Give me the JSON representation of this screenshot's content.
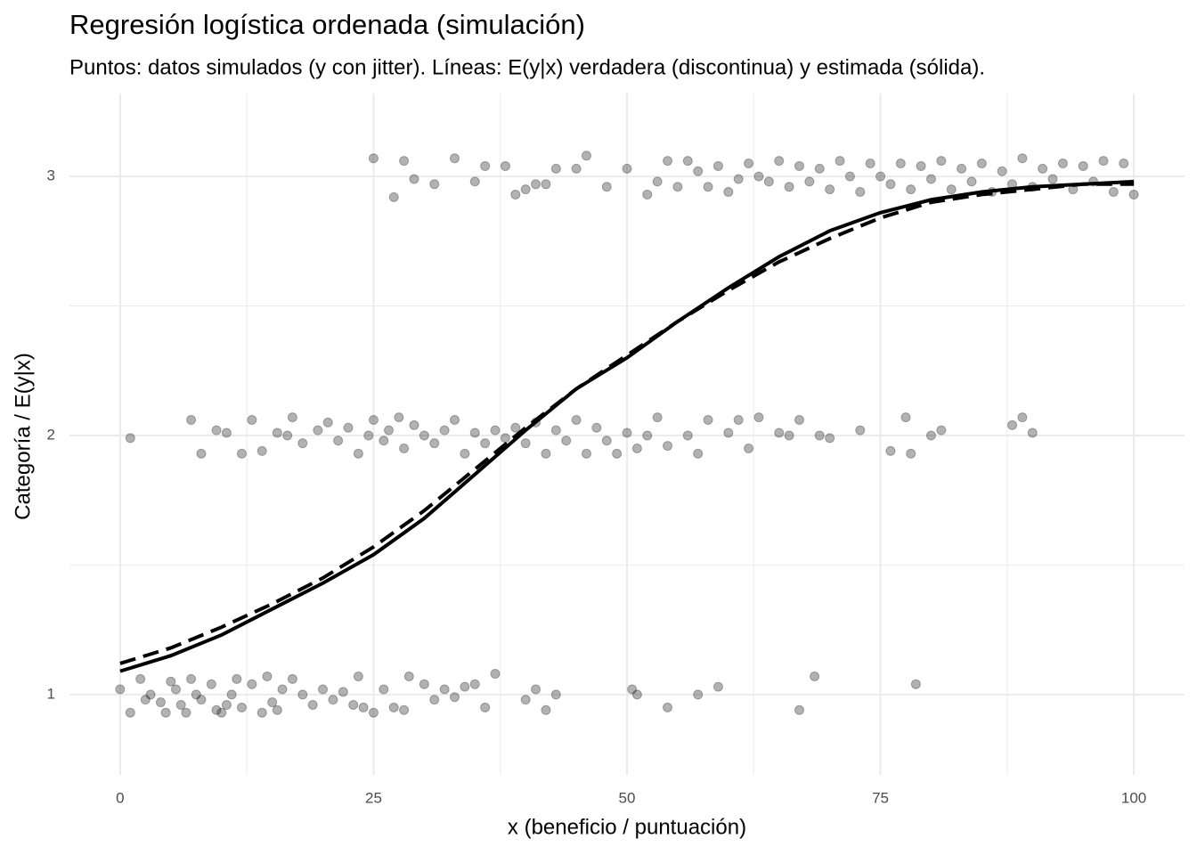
{
  "chart_data": {
    "type": "scatter",
    "title": "Regresión logística ordenada (simulación)",
    "subtitle": "Puntos: datos simulados (y con jitter). Líneas: E(y|x) verdadera (discontinua) y estimada (sólida).",
    "x_label": "x (beneficio / puntuación)",
    "y_label": "Categoría / E(y|x)",
    "xlim": [
      -5,
      105
    ],
    "ylim": [
      0.69,
      3.32
    ],
    "xticks": [
      0,
      25,
      50,
      75,
      100
    ],
    "yticks": [
      1,
      2,
      3
    ],
    "x_minor_grid": [
      12.5,
      37.5,
      62.5,
      87.5
    ],
    "y_minor_grid": [
      1.5,
      2.5
    ],
    "grid": true,
    "series": [
      {
        "type": "scatter",
        "color": "#000000",
        "opacity": 0.3,
        "x": [
          0,
          1,
          2,
          2.5,
          3,
          4,
          4.5,
          5,
          5.5,
          6,
          6.5,
          7,
          7.5,
          8,
          9,
          9.5,
          10,
          10.5,
          11,
          11.5,
          12,
          13,
          14,
          14.5,
          15,
          15.5,
          16,
          17,
          18,
          19,
          20,
          21,
          22,
          23,
          23.5,
          24,
          25,
          26,
          27,
          28,
          28.5,
          30,
          31,
          32,
          33,
          34,
          35,
          36,
          37,
          40,
          41,
          42,
          43,
          50.5,
          51,
          54,
          57,
          59,
          67,
          68.5,
          78.5,
          1,
          7,
          8,
          9.5,
          10.5,
          12,
          13,
          14,
          15.5,
          16.5,
          17,
          18,
          19.5,
          20.5,
          21.5,
          22.5,
          23.5,
          24.5,
          25,
          26,
          26.5,
          27.5,
          28,
          29,
          30,
          31,
          32,
          33,
          34,
          35,
          36,
          37,
          38,
          39,
          40,
          41,
          42,
          43,
          44,
          45,
          46,
          47,
          48,
          49,
          50,
          51,
          52,
          53,
          54,
          56,
          57,
          58,
          60,
          61,
          62,
          63,
          65,
          66,
          67,
          69,
          70,
          73,
          76,
          77.5,
          78,
          80,
          81,
          88,
          89,
          90,
          25,
          27,
          28,
          29,
          31,
          33,
          35,
          36,
          38,
          39,
          40,
          41,
          42,
          43,
          45,
          46,
          48,
          50,
          52,
          53,
          54,
          55,
          56,
          57,
          58,
          59,
          60,
          61,
          62,
          63,
          64,
          65,
          66,
          67,
          68,
          69,
          70,
          71,
          72,
          73,
          74,
          75,
          76,
          77,
          78,
          79,
          80,
          81,
          82,
          83,
          84,
          85,
          86,
          87,
          88,
          89,
          90,
          91,
          92,
          93,
          94,
          95,
          96,
          97,
          98,
          99,
          100
        ],
        "values": [
          1.02,
          0.93,
          1.06,
          0.98,
          1.0,
          0.97,
          0.93,
          1.05,
          1.02,
          0.96,
          0.93,
          1.06,
          1.0,
          0.98,
          1.04,
          0.94,
          0.93,
          0.96,
          1.0,
          1.06,
          0.95,
          1.04,
          0.93,
          1.07,
          0.97,
          0.94,
          1.02,
          1.06,
          1.0,
          0.96,
          1.02,
          0.98,
          1.01,
          0.96,
          1.07,
          0.95,
          0.93,
          1.02,
          0.95,
          0.94,
          1.07,
          1.04,
          0.98,
          1.02,
          0.99,
          1.03,
          1.04,
          0.95,
          1.08,
          0.98,
          1.02,
          0.94,
          1.0,
          1.02,
          1.0,
          0.95,
          1.0,
          1.03,
          0.94,
          1.07,
          1.04,
          1.99,
          2.06,
          1.93,
          2.02,
          2.01,
          1.93,
          2.06,
          1.94,
          2.01,
          2.0,
          2.07,
          1.97,
          2.02,
          2.05,
          1.98,
          2.03,
          1.93,
          2.0,
          2.06,
          1.98,
          2.02,
          2.07,
          1.95,
          2.04,
          2.0,
          1.97,
          2.02,
          2.06,
          1.93,
          2.01,
          1.97,
          2.02,
          1.99,
          2.03,
          1.97,
          2.05,
          1.93,
          2.02,
          1.98,
          2.06,
          1.93,
          2.03,
          1.98,
          1.93,
          2.01,
          1.95,
          2.0,
          2.07,
          1.96,
          2.0,
          1.93,
          2.06,
          2.01,
          2.06,
          1.95,
          2.07,
          2.01,
          2.0,
          2.06,
          2.0,
          1.99,
          2.02,
          1.94,
          2.07,
          1.93,
          2.0,
          2.02,
          2.04,
          2.07,
          2.01,
          3.07,
          2.92,
          3.06,
          2.99,
          2.97,
          3.07,
          2.98,
          3.04,
          3.04,
          2.93,
          2.95,
          2.97,
          2.97,
          3.03,
          3.03,
          3.08,
          2.96,
          3.03,
          2.93,
          2.98,
          3.06,
          2.96,
          3.06,
          3.02,
          2.96,
          3.04,
          2.94,
          2.99,
          3.05,
          3.0,
          2.98,
          3.06,
          2.96,
          3.04,
          2.98,
          3.03,
          2.95,
          3.06,
          3.0,
          2.94,
          3.05,
          3.0,
          2.97,
          3.05,
          2.95,
          3.04,
          2.99,
          3.06,
          2.95,
          3.03,
          2.98,
          3.05,
          2.94,
          3.02,
          2.97,
          3.07,
          2.96,
          3.03,
          2.99,
          3.05,
          2.95,
          3.04,
          2.98,
          3.06,
          2.94,
          3.05,
          2.93
        ]
      },
      {
        "type": "line",
        "dash": true,
        "color": "#000000",
        "x": [
          0,
          5,
          10,
          15,
          20,
          25,
          30,
          35,
          40,
          45,
          50,
          55,
          60,
          65,
          70,
          75,
          80,
          85,
          90,
          95,
          100
        ],
        "values": [
          1.12,
          1.18,
          1.26,
          1.35,
          1.45,
          1.57,
          1.71,
          1.87,
          2.03,
          2.18,
          2.31,
          2.44,
          2.56,
          2.67,
          2.76,
          2.84,
          2.9,
          2.93,
          2.95,
          2.97,
          2.97
        ]
      },
      {
        "type": "line",
        "dash": false,
        "color": "#000000",
        "x": [
          0,
          5,
          10,
          15,
          20,
          25,
          30,
          35,
          40,
          45,
          50,
          55,
          60,
          65,
          70,
          75,
          80,
          85,
          90,
          95,
          100
        ],
        "values": [
          1.09,
          1.15,
          1.23,
          1.33,
          1.43,
          1.54,
          1.68,
          1.85,
          2.02,
          2.18,
          2.3,
          2.44,
          2.57,
          2.69,
          2.79,
          2.86,
          2.91,
          2.94,
          2.96,
          2.97,
          2.98
        ]
      }
    ]
  }
}
